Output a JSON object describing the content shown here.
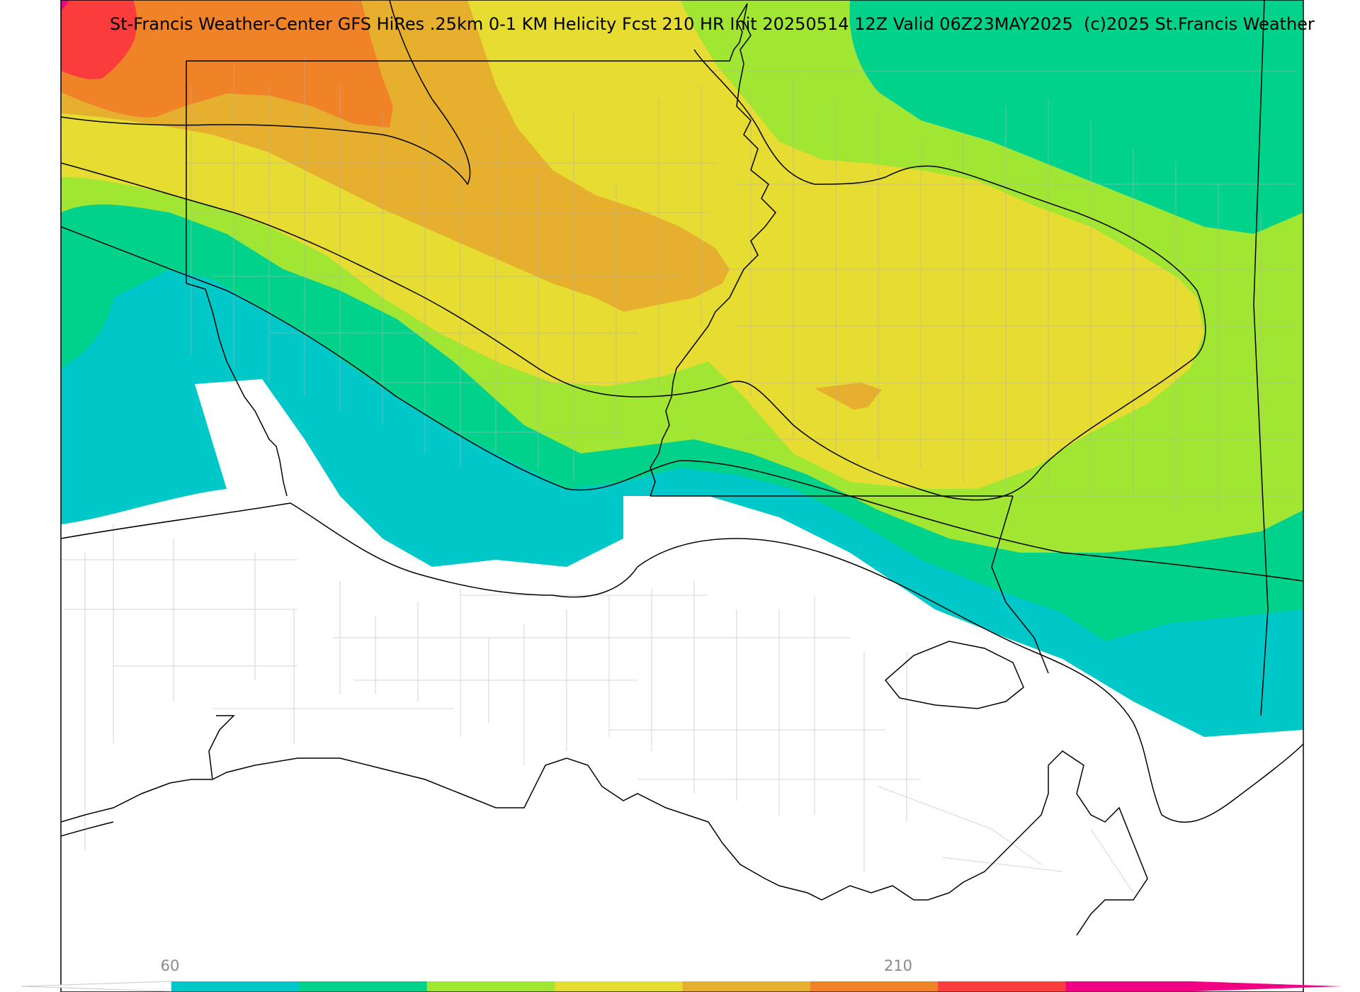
{
  "header": {
    "title": "St-Francis Weather-Center GFS HiRes .25km 0-1 KM Helicity Fcst 210 HR Init 20250514 12Z  Valid 06Z23MAY2025",
    "copyright": "(c)2025 St.Francis Weather"
  },
  "legend": {
    "ticks": [
      {
        "label": "60",
        "value": 60
      },
      {
        "label": "210",
        "value": 210
      }
    ],
    "swatches": [
      "#00c8c8",
      "#00d28c",
      "#a0e632",
      "#e6dc32",
      "#e6af2d",
      "#f08228",
      "#fa3c3c",
      "#f00082"
    ]
  },
  "palette": {
    "teal": "#00c8c8",
    "green": "#00d28c",
    "lime": "#a0e632",
    "yellow": "#e6dc32",
    "gold": "#e6af2d",
    "orange": "#f08228",
    "red": "#fa3c3c",
    "magenta": "#f00082",
    "background": "#ffffff",
    "boundary": "#000000",
    "county": "#b4b4b4"
  }
}
